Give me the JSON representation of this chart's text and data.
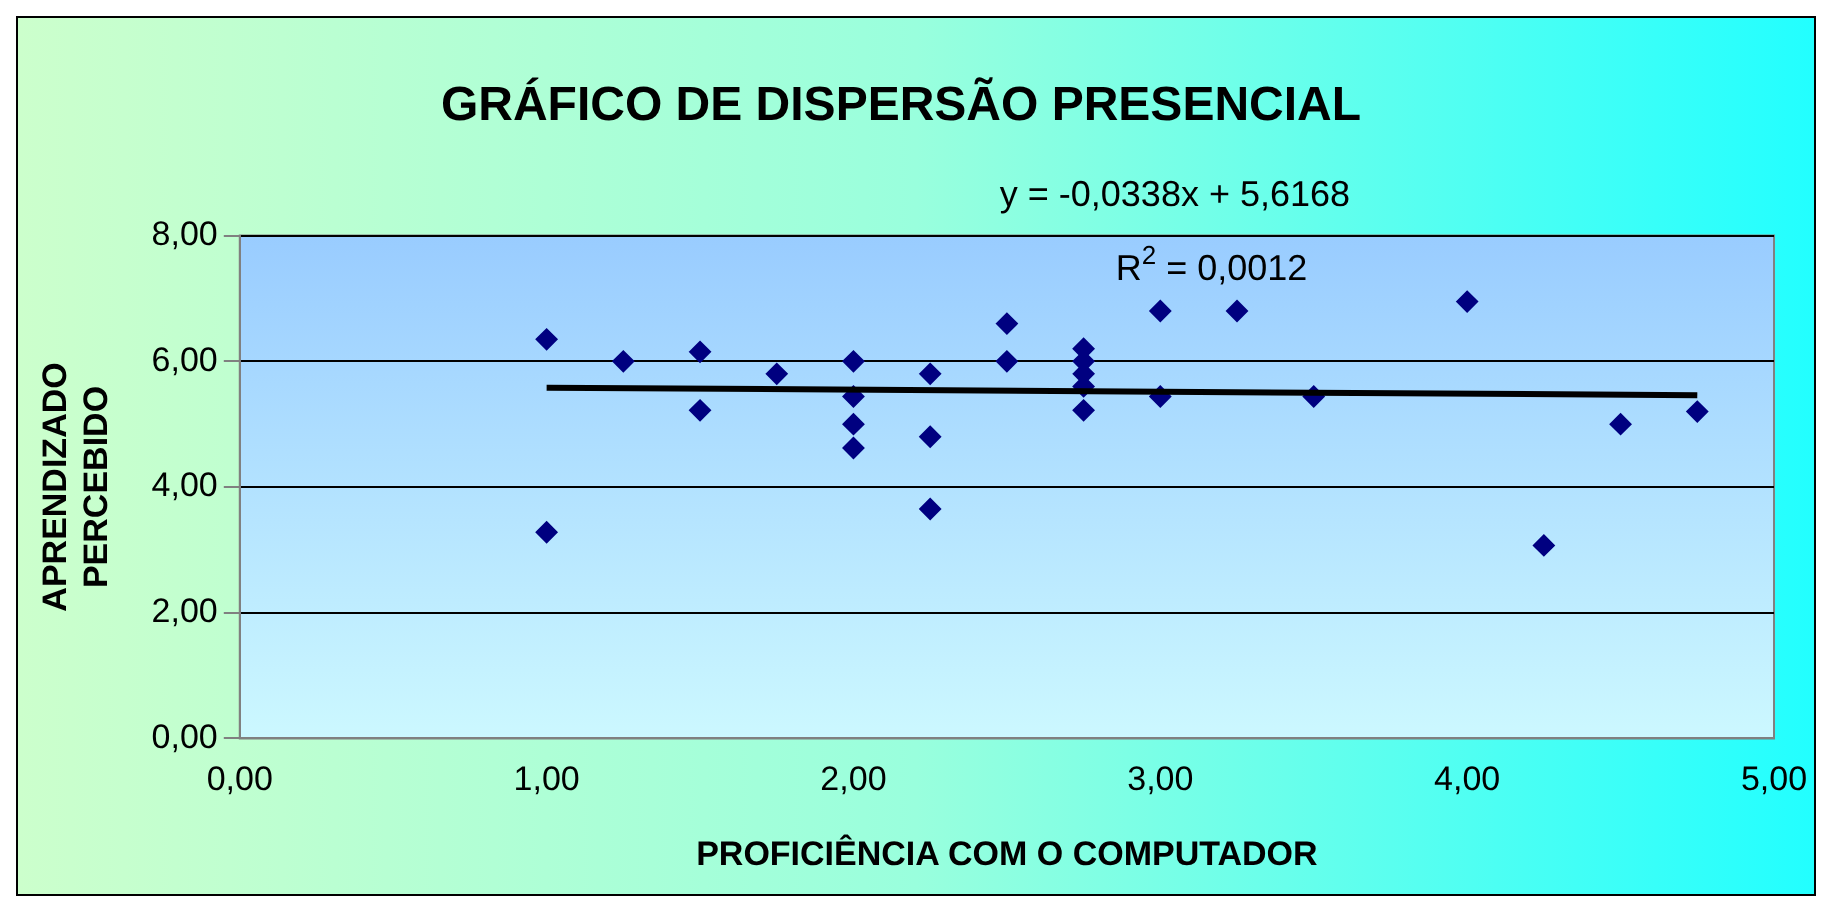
{
  "chart_data": {
    "type": "scatter",
    "title": "GRÁFICO DE DISPERSÃO PRESENCIAL",
    "xlabel": "PROFICIÊNCIA COM O COMPUTADOR",
    "ylabel": "APRENDIZADO PERCEBIDO",
    "annotations": [
      "y = -0,0338x + 5,6168",
      "R$^{2}$ = 0,0012"
    ],
    "xlim": [
      0,
      5
    ],
    "xticks": [
      {
        "value": 0,
        "label": "0,00"
      },
      {
        "value": 1,
        "label": "1,00"
      },
      {
        "value": 2,
        "label": "2,00"
      },
      {
        "value": 3,
        "label": "3,00"
      },
      {
        "value": 4,
        "label": "4,00"
      },
      {
        "value": 5,
        "label": "5,00"
      }
    ],
    "ylim": [
      0,
      8
    ],
    "yticks": [
      {
        "value": 0,
        "label": "0,00"
      },
      {
        "value": 2,
        "label": "2,00"
      },
      {
        "value": 4,
        "label": "4,00"
      },
      {
        "value": 6,
        "label": "6,00"
      },
      {
        "value": 8,
        "label": "8,00"
      }
    ],
    "grid": "y",
    "legend": false,
    "series": [
      {
        "marker": "diamond",
        "color": "#000080",
        "x": [
          1,
          1,
          1.25,
          1.5,
          1.5,
          1.75,
          2,
          2,
          2,
          2,
          2.25,
          2.25,
          2.25,
          2.5,
          2.5,
          2.75,
          2.75,
          2.75,
          2.75,
          2.75,
          3,
          3,
          3.25,
          3.5,
          4,
          4.25,
          4.5,
          4.75
        ],
        "values": [
          6.35,
          3.28,
          6.0,
          6.15,
          5.22,
          5.8,
          6.0,
          5.44,
          5.0,
          4.62,
          5.8,
          4.8,
          3.65,
          6.6,
          6.0,
          6.2,
          6.0,
          5.8,
          5.6,
          5.22,
          6.8,
          5.44,
          6.8,
          5.44,
          6.95,
          3.07,
          5.0,
          5.2
        ]
      },
      {
        "type": "line",
        "marker": "none",
        "color": "#000000",
        "x": [
          1,
          4.75
        ],
        "values": [
          5.58,
          5.46
        ]
      }
    ]
  }
}
